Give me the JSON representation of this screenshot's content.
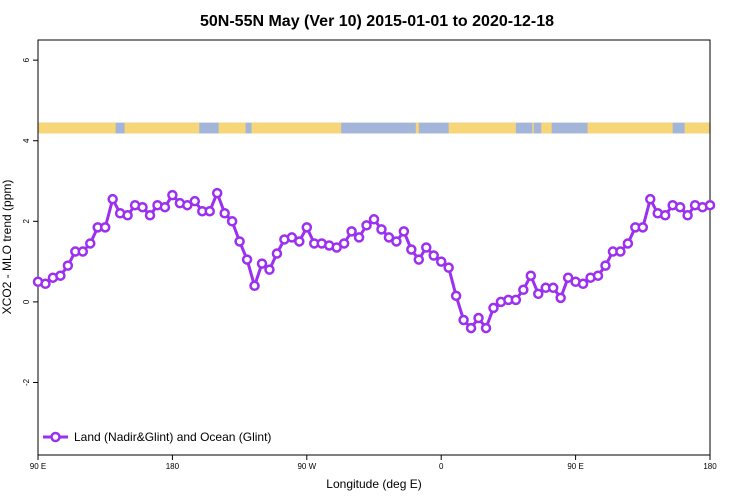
{
  "chart_data": {
    "type": "line",
    "title": "50N-55N May (Ver 10)   2015-01-01 to 2020-12-18",
    "xlabel": "Longitude (deg E)",
    "ylabel": "XCO2 - MLO trend (ppm)",
    "x_ticks": [
      {
        "value": 90,
        "label": "90 E"
      },
      {
        "value": 180,
        "label": "180"
      },
      {
        "value": 270,
        "label": "90 W"
      },
      {
        "value": 360,
        "label": "0"
      },
      {
        "value": 450,
        "label": "90 E"
      },
      {
        "value": 540,
        "label": "180"
      }
    ],
    "y_ticks": [
      {
        "value": -2,
        "label": "-2"
      },
      {
        "value": 0,
        "label": "0"
      },
      {
        "value": 2,
        "label": "2"
      },
      {
        "value": 4,
        "label": "4"
      },
      {
        "value": 6,
        "label": "6"
      }
    ],
    "xlim": [
      90,
      540
    ],
    "ylim": [
      -3.8,
      6.5
    ],
    "grid": false,
    "legend_position": "bottom-left",
    "land_ocean_band": {
      "y_range": [
        4.18,
        4.45
      ],
      "ocean_color": "#a3b6d9",
      "land_color": "#f7d67a",
      "land_segments": [
        [
          90,
          142
        ],
        [
          148,
          198
        ],
        [
          211,
          229
        ],
        [
          233,
          293
        ],
        [
          343,
          345
        ],
        [
          365,
          410
        ],
        [
          421,
          422
        ],
        [
          427,
          434
        ],
        [
          458,
          515
        ],
        [
          523,
          540
        ]
      ]
    },
    "series": [
      {
        "name": "Land (Nadir&Glint) and Ocean (Glint)",
        "color": "#9b30f0",
        "x": [
          90,
          95,
          100,
          105,
          110,
          115,
          120,
          125,
          130,
          135,
          140,
          145,
          150,
          155,
          160,
          165,
          170,
          175,
          180,
          185,
          190,
          195,
          200,
          205,
          210,
          215,
          220,
          225,
          230,
          235,
          240,
          245,
          250,
          255,
          260,
          265,
          270,
          275,
          280,
          285,
          290,
          295,
          300,
          305,
          310,
          315,
          320,
          325,
          330,
          335,
          340,
          345,
          350,
          355,
          360,
          365,
          370,
          375,
          380,
          385,
          390,
          395,
          400,
          405,
          410,
          415,
          420,
          425,
          430,
          435,
          440,
          445,
          450,
          455,
          460,
          465,
          470,
          475,
          480,
          485,
          490,
          495,
          500,
          505,
          510,
          515,
          520,
          525,
          530,
          535,
          540
        ],
        "y": [
          0.5,
          0.45,
          0.6,
          0.65,
          0.9,
          1.25,
          1.25,
          1.45,
          1.85,
          1.85,
          2.55,
          2.2,
          2.15,
          2.4,
          2.35,
          2.15,
          2.4,
          2.35,
          2.65,
          2.45,
          2.4,
          2.5,
          2.25,
          2.25,
          2.7,
          2.2,
          2.0,
          1.5,
          1.05,
          0.4,
          0.95,
          0.8,
          1.2,
          1.55,
          1.6,
          1.5,
          1.85,
          1.45,
          1.45,
          1.4,
          1.35,
          1.45,
          1.75,
          1.6,
          1.9,
          2.05,
          1.8,
          1.6,
          1.5,
          1.75,
          1.3,
          1.05,
          1.35,
          1.15,
          1.0,
          0.85,
          0.15,
          -0.45,
          -0.65,
          -0.4,
          -0.65,
          -0.15,
          0.0,
          0.05,
          0.05,
          0.3,
          0.65,
          0.2,
          0.35,
          0.35,
          0.1,
          0.6,
          0.5,
          0.45,
          0.6,
          0.65,
          0.9,
          1.25,
          1.25,
          1.45,
          1.85,
          1.85,
          2.55,
          2.2,
          2.15,
          2.4,
          2.35,
          2.15,
          2.4,
          2.35,
          2.4
        ]
      }
    ]
  }
}
